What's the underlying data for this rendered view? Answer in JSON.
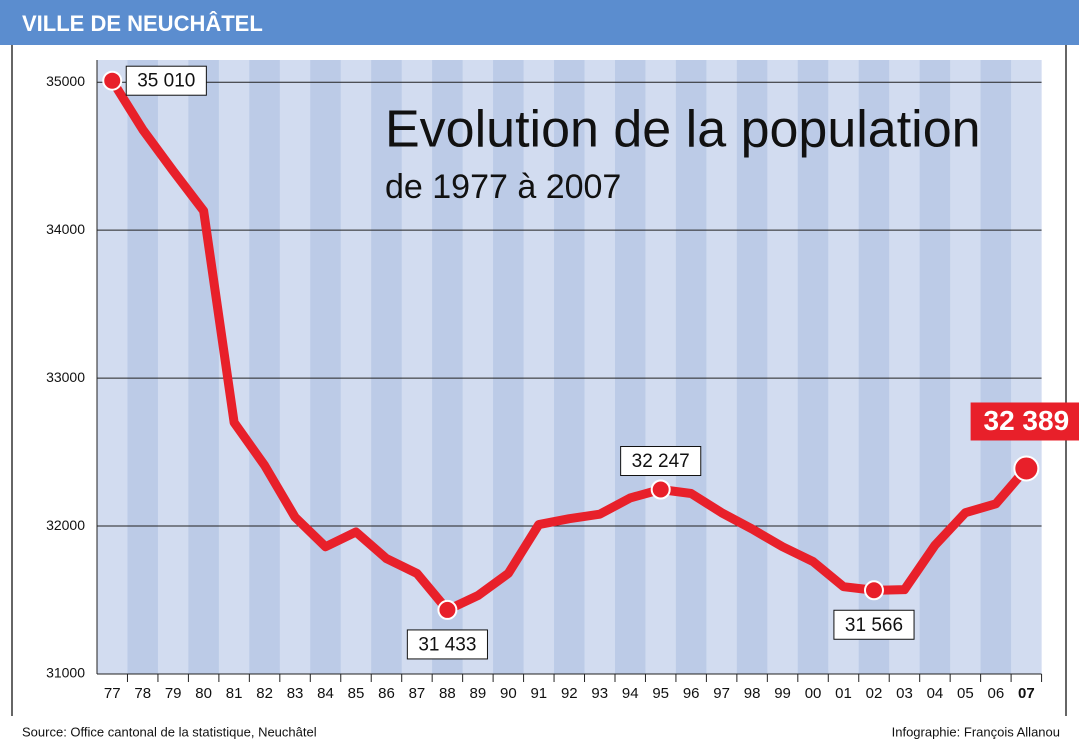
{
  "header": "VILLE DE NEUCHÂTEL",
  "chart_data": {
    "type": "line",
    "title": "Evolution de la population",
    "subtitle": "de 1977 à 2007",
    "categories": [
      "77",
      "78",
      "79",
      "80",
      "81",
      "82",
      "83",
      "84",
      "85",
      "86",
      "87",
      "88",
      "89",
      "90",
      "91",
      "92",
      "93",
      "94",
      "95",
      "96",
      "97",
      "98",
      "99",
      "00",
      "01",
      "02",
      "03",
      "04",
      "05",
      "06",
      "07"
    ],
    "values": [
      35010,
      34680,
      34400,
      34130,
      32700,
      32410,
      32060,
      31860,
      31960,
      31780,
      31680,
      31433,
      31530,
      31680,
      32010,
      32050,
      32080,
      32190,
      32247,
      32220,
      32090,
      31980,
      31860,
      31760,
      31590,
      31566,
      31570,
      31870,
      32090,
      32150,
      32389
    ],
    "value_labels": [
      "35 010",
      null,
      null,
      null,
      null,
      null,
      null,
      null,
      null,
      null,
      null,
      "31 433",
      null,
      null,
      null,
      null,
      null,
      null,
      "32 247",
      null,
      null,
      null,
      null,
      null,
      null,
      "31 566",
      null,
      null,
      null,
      null,
      "32 389"
    ],
    "color": "#e8202a",
    "ylim": [
      31000,
      35150
    ],
    "yticks": [
      31000,
      32000,
      33000,
      34000,
      35000
    ],
    "grid": true
  },
  "footer": {
    "source": "Source: Office cantonal de la statistique, Neuchâtel",
    "credit": "Infographie: François Allanou"
  }
}
